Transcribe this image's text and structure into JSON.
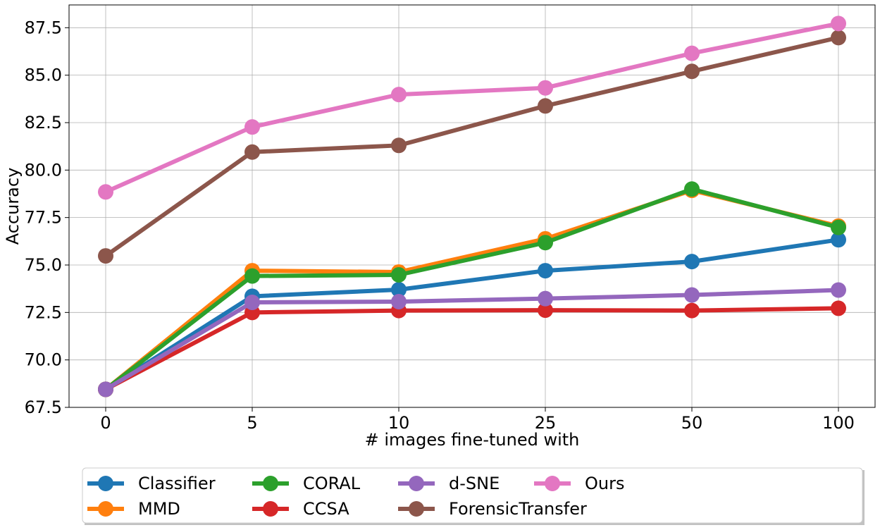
{
  "chart_data": {
    "type": "line",
    "categories": [
      "0",
      "5",
      "10",
      "25",
      "50",
      "100"
    ],
    "xlabel": "# images fine-tuned with",
    "ylabel": "Accuracy",
    "ylim": [
      67.5,
      88.7
    ],
    "yticks": [
      67.5,
      70.0,
      72.5,
      75.0,
      77.5,
      80.0,
      82.5,
      85.0,
      87.5
    ],
    "yticks_labels": [
      "67.5",
      "70.0",
      "72.5",
      "75.0",
      "77.5",
      "80.0",
      "82.5",
      "85.0",
      "87.5"
    ],
    "grid": true,
    "legend_placement": "bottom-center",
    "series": [
      {
        "name": "Classifier",
        "color": "#1f77b4",
        "values": [
          68.45,
          73.35,
          73.7,
          74.7,
          75.18,
          76.33
        ]
      },
      {
        "name": "MMD",
        "color": "#ff7f0e",
        "values": [
          68.45,
          74.7,
          74.63,
          76.38,
          78.93,
          77.05
        ]
      },
      {
        "name": "CORAL",
        "color": "#2ca02c",
        "values": [
          68.45,
          74.42,
          74.48,
          76.18,
          79.0,
          76.98
        ]
      },
      {
        "name": "CCSA",
        "color": "#d62728",
        "values": [
          68.45,
          72.5,
          72.6,
          72.62,
          72.6,
          72.72
        ]
      },
      {
        "name": "d-SNE",
        "color": "#9467bd",
        "values": [
          68.45,
          73.03,
          73.07,
          73.23,
          73.42,
          73.68
        ]
      },
      {
        "name": "ForensicTransfer",
        "color": "#8c564b",
        "values": [
          75.48,
          80.95,
          81.3,
          83.38,
          85.2,
          86.98
        ]
      },
      {
        "name": "Ours",
        "color": "#e377c2",
        "values": [
          78.85,
          82.27,
          83.98,
          84.33,
          86.15,
          87.72
        ]
      }
    ]
  }
}
